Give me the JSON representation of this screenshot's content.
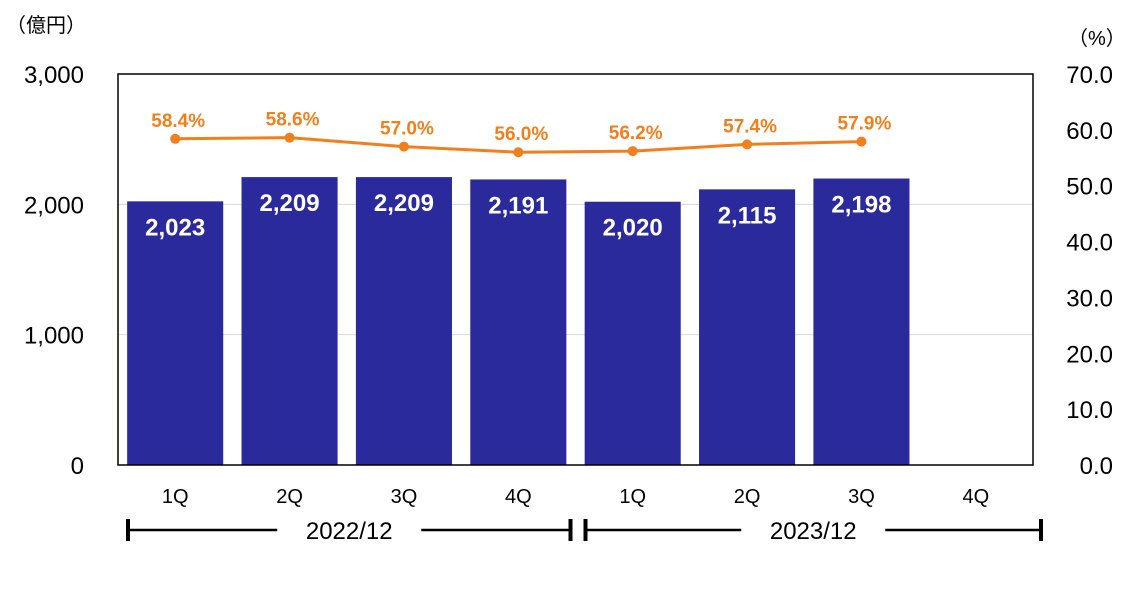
{
  "chart_data": {
    "type": "bar",
    "y_left_unit": "（億円）",
    "y_right_unit": "（%）",
    "ylim_left": [
      0,
      3000
    ],
    "left_ticks": [
      "0",
      "1,000",
      "2,000",
      "3,000"
    ],
    "left_tick_values": [
      0,
      1000,
      2000,
      3000
    ],
    "ylim_right": [
      0,
      70
    ],
    "right_ticks": [
      "0.0",
      "10.0",
      "20.0",
      "30.0",
      "40.0",
      "50.0",
      "60.0",
      "70.0"
    ],
    "right_tick_values": [
      0,
      10,
      20,
      30,
      40,
      50,
      60,
      70
    ],
    "categories": [
      "1Q",
      "2Q",
      "3Q",
      "4Q",
      "1Q",
      "2Q",
      "3Q",
      "4Q"
    ],
    "bar_values": [
      2023,
      2209,
      2209,
      2191,
      2020,
      2115,
      2198,
      null
    ],
    "bar_labels": [
      "2,023",
      "2,209",
      "2,209",
      "2,191",
      "2,020",
      "2,115",
      "2,198"
    ],
    "line_values": [
      58.4,
      58.6,
      57.0,
      56.0,
      56.2,
      57.4,
      57.9
    ],
    "line_labels": [
      "58.4%",
      "58.6%",
      "57.0%",
      "56.0%",
      "56.2%",
      "57.4%",
      "57.9%"
    ],
    "periods": [
      {
        "label": "2022/12",
        "start": 0,
        "end": 3
      },
      {
        "label": "2023/12",
        "start": 4,
        "end": 7
      }
    ],
    "grid": true,
    "colors": {
      "bar": "#2b2a9c",
      "line": "#f07f1c",
      "grid": "#d9d9d9",
      "frame": "#000000"
    }
  }
}
